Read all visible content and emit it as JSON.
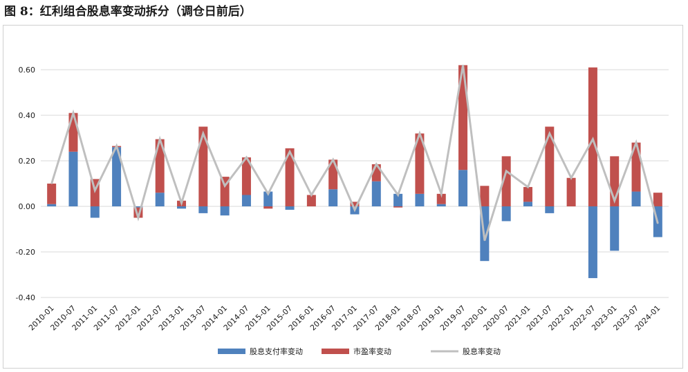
{
  "title": "图 8：红利组合股息率变动拆分（调仓日前后）",
  "chart_data": {
    "type": "bar",
    "stacked": true,
    "categories": [
      "2010-01",
      "2010-07",
      "2011-01",
      "2011-07",
      "2012-01",
      "2012-07",
      "2013-01",
      "2013-07",
      "2014-01",
      "2014-07",
      "2015-01",
      "2015-07",
      "2016-01",
      "2016-07",
      "2017-01",
      "2017-07",
      "2018-01",
      "2018-07",
      "2019-01",
      "2019-07",
      "2020-01",
      "2020-07",
      "2021-01",
      "2021-07",
      "2022-01",
      "2022-07",
      "2023-01",
      "2023-07",
      "2024-01"
    ],
    "series": [
      {
        "name": "股息支付率变动",
        "kind": "bar",
        "color": "#4f81bd",
        "values": [
          0.01,
          0.24,
          -0.05,
          0.26,
          -0.005,
          0.06,
          -0.01,
          -0.03,
          -0.04,
          0.05,
          0.065,
          -0.015,
          0.0,
          0.075,
          -0.035,
          0.11,
          0.055,
          0.055,
          0.01,
          0.16,
          -0.24,
          -0.065,
          0.02,
          -0.03,
          0.0,
          -0.315,
          -0.195,
          0.065,
          -0.135
        ]
      },
      {
        "name": "市盈率变动",
        "kind": "bar",
        "color": "#c0504d",
        "values": [
          0.09,
          0.17,
          0.12,
          0.005,
          -0.045,
          0.235,
          0.025,
          0.35,
          0.13,
          0.165,
          -0.01,
          0.255,
          0.05,
          0.13,
          0.02,
          0.075,
          -0.005,
          0.265,
          0.045,
          0.46,
          0.09,
          0.22,
          0.065,
          0.35,
          0.125,
          0.61,
          0.22,
          0.215,
          0.06
        ]
      },
      {
        "name": "股息率变动",
        "kind": "line",
        "color": "#bfbfbf",
        "values": [
          0.1,
          0.41,
          0.07,
          0.265,
          -0.05,
          0.295,
          0.015,
          0.32,
          0.09,
          0.215,
          0.055,
          0.24,
          0.05,
          0.205,
          -0.015,
          0.185,
          0.05,
          0.32,
          0.055,
          0.62,
          -0.15,
          0.155,
          0.085,
          0.32,
          0.125,
          0.295,
          0.025,
          0.28,
          -0.075
        ]
      }
    ],
    "ylim": [
      -0.4,
      0.7
    ],
    "yticks": [
      "-0.40",
      "-0.20",
      "0.00",
      "0.20",
      "0.40",
      "0.60"
    ],
    "grid": true,
    "legend": "bottom-center"
  }
}
